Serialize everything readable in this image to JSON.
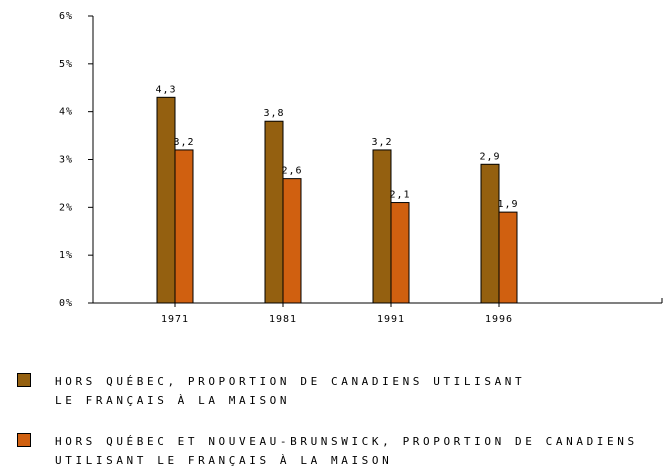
{
  "chart_data": {
    "type": "bar",
    "categories": [
      "1971",
      "1981",
      "1991",
      "1996"
    ],
    "series": [
      {
        "name": "HORS QUÉBEC, PROPORTION DE CANADIENS UTILISANT LE FRANÇAIS À LA MAISON",
        "color": "#946010",
        "values": [
          4.3,
          3.8,
          3.2,
          2.9
        ],
        "value_labels": [
          "4,3",
          "3,8",
          "3,2",
          "2,9"
        ]
      },
      {
        "name": "HORS QUÉBEC ET NOUVEAU-BRUNSWICK, PROPORTION DE CANADIENS UTILISANT LE FRANÇAIS À LA MAISON",
        "color": "#d06010",
        "values": [
          3.2,
          2.6,
          2.1,
          1.9
        ],
        "value_labels": [
          "3,2",
          "2,6",
          "2,1",
          "1,9"
        ]
      }
    ],
    "ylim": [
      0,
      6
    ],
    "yticks": [
      {
        "value": 0,
        "label": "0%"
      },
      {
        "value": 1,
        "label": "1%"
      },
      {
        "value": 2,
        "label": "2%"
      },
      {
        "value": 3,
        "label": "3%"
      },
      {
        "value": 4,
        "label": "4%"
      },
      {
        "value": 5,
        "label": "5%"
      },
      {
        "value": 6,
        "label": "6%"
      }
    ]
  }
}
